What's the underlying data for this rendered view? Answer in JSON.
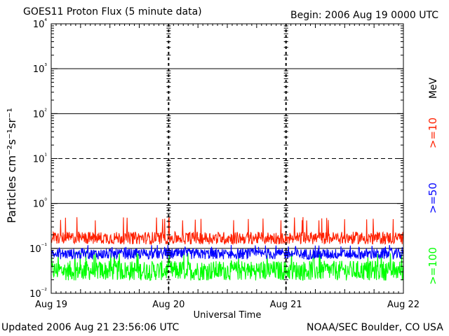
{
  "header": {
    "title": "GOES11 Proton Flux (5 minute data)",
    "begin": "Begin: 2006 Aug 19 0000 UTC"
  },
  "footer": {
    "updated": "Updated 2006 Aug 21 23:56:06 UTC",
    "source": "NOAA/SEC Boulder, CO USA"
  },
  "chart_data": {
    "type": "line",
    "title": "GOES11 Proton Flux (5 minute data)",
    "xlabel": "Universal Time",
    "ylabel": "Particles cm⁻²s⁻¹sr⁻¹",
    "yscale": "log",
    "ylim": [
      0.01,
      10000
    ],
    "x_ticks": [
      "Aug 19",
      "Aug 20",
      "Aug 21",
      "Aug 22"
    ],
    "y_ticks": [
      "10⁻²",
      "10⁻¹",
      "10⁰",
      "10¹",
      "10²",
      "10³",
      "10⁴"
    ],
    "grid": true,
    "legend_position": "right",
    "legend_unit": "MeV",
    "series": [
      {
        "name": ">=10",
        "color": "#ff2000",
        "baseline": 0.17,
        "spread": 0.14,
        "spike_max": 0.5
      },
      {
        "name": ">=50",
        "color": "#0000ff",
        "baseline": 0.075,
        "spread": 0.12,
        "spike_max": 0.12
      },
      {
        "name": ">=100",
        "color": "#00ff00",
        "baseline": 0.032,
        "spread": 0.22,
        "spike_max": 0.09
      }
    ]
  }
}
